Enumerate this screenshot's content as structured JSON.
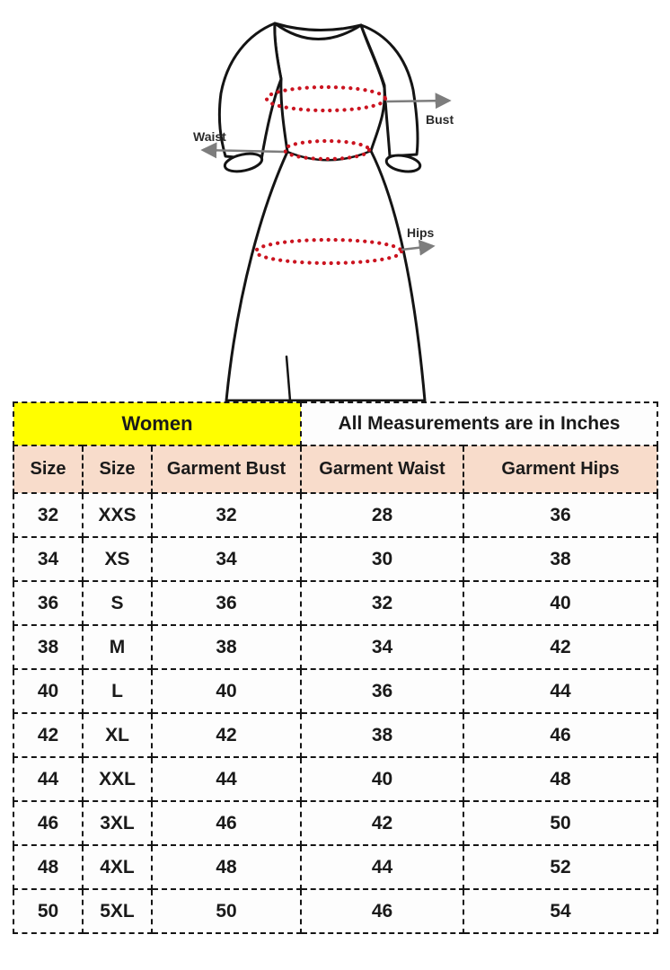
{
  "colors": {
    "women_bg": "#fffe00",
    "header_bg": "#f8dccb",
    "dot_red": "#cb1420",
    "arrow_gray": "#7d7d7d",
    "outline_dark": "#141414",
    "text_dark": "#1a1a1a",
    "border_dark": "#151515"
  },
  "diagram": {
    "bust_label": "Bust",
    "waist_label": "Waist",
    "hips_label": "Hips"
  },
  "table": {
    "group_headers": [
      {
        "label": "Women"
      },
      {
        "label": "All Measurements are in Inches"
      }
    ],
    "columns": [
      "Size",
      "Size",
      "Garment Bust",
      "Garment Waist",
      "Garment Hips"
    ],
    "rows": [
      [
        "32",
        "XXS",
        "32",
        "28",
        "36"
      ],
      [
        "34",
        "XS",
        "34",
        "30",
        "38"
      ],
      [
        "36",
        "S",
        "36",
        "32",
        "40"
      ],
      [
        "38",
        "M",
        "38",
        "34",
        "42"
      ],
      [
        "40",
        "L",
        "40",
        "36",
        "44"
      ],
      [
        "42",
        "XL",
        "42",
        "38",
        "46"
      ],
      [
        "44",
        "XXL",
        "44",
        "40",
        "48"
      ],
      [
        "46",
        "3XL",
        "46",
        "42",
        "50"
      ],
      [
        "48",
        "4XL",
        "48",
        "44",
        "52"
      ],
      [
        "50",
        "5XL",
        "50",
        "46",
        "54"
      ]
    ]
  }
}
